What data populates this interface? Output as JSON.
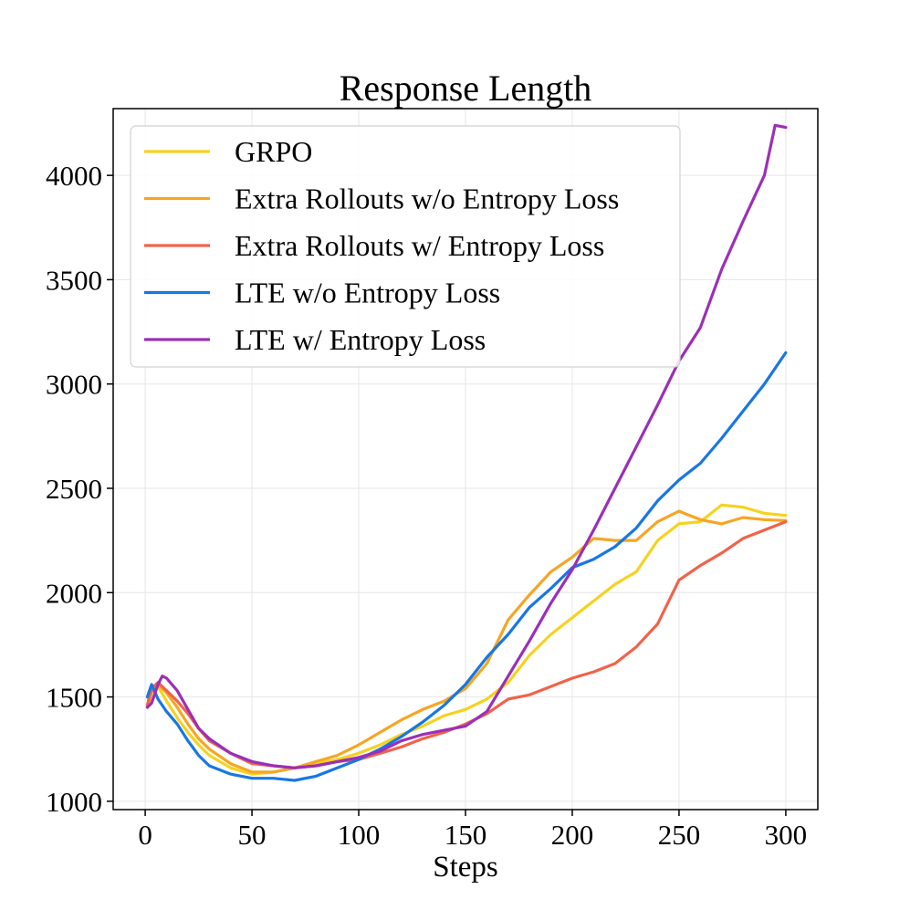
{
  "chart_data": {
    "type": "line",
    "title": "Response Length",
    "xlabel": "Steps",
    "ylabel": "",
    "xlim": [
      -15,
      315
    ],
    "ylim": [
      960,
      4320
    ],
    "xticks": [
      0,
      50,
      100,
      150,
      200,
      250,
      300
    ],
    "yticks": [
      1000,
      1500,
      2000,
      2500,
      3000,
      3500,
      4000
    ],
    "grid": true,
    "legend_position": "top-left",
    "series": [
      {
        "name": "GRPO",
        "color": "#f7d21e",
        "x": [
          1,
          3,
          6,
          10,
          15,
          20,
          25,
          30,
          40,
          50,
          60,
          70,
          80,
          90,
          100,
          110,
          120,
          130,
          140,
          150,
          160,
          170,
          180,
          190,
          200,
          210,
          220,
          230,
          240,
          250,
          260,
          270,
          280,
          290,
          300
        ],
        "y": [
          1460,
          1540,
          1550,
          1480,
          1400,
          1330,
          1270,
          1220,
          1160,
          1130,
          1140,
          1160,
          1180,
          1200,
          1230,
          1270,
          1320,
          1360,
          1410,
          1440,
          1490,
          1570,
          1700,
          1800,
          1880,
          1960,
          2040,
          2100,
          2250,
          2330,
          2340,
          2420,
          2410,
          2380,
          2370
        ]
      },
      {
        "name": "Extra Rollouts w/o Entropy Loss",
        "color": "#f5a623",
        "x": [
          1,
          3,
          6,
          10,
          15,
          20,
          25,
          30,
          40,
          50,
          60,
          70,
          80,
          90,
          100,
          110,
          120,
          130,
          140,
          150,
          160,
          170,
          180,
          190,
          200,
          210,
          220,
          230,
          240,
          250,
          260,
          270,
          280,
          290,
          300
        ],
        "y": [
          1450,
          1520,
          1560,
          1520,
          1450,
          1370,
          1300,
          1250,
          1180,
          1140,
          1140,
          1160,
          1190,
          1220,
          1270,
          1330,
          1390,
          1440,
          1480,
          1540,
          1660,
          1870,
          1990,
          2100,
          2170,
          2260,
          2250,
          2250,
          2340,
          2390,
          2350,
          2330,
          2360,
          2350,
          2345
        ]
      },
      {
        "name": "Extra Rollouts w/ Entropy Loss",
        "color": "#f0634a",
        "x": [
          1,
          3,
          6,
          10,
          15,
          20,
          25,
          30,
          40,
          50,
          60,
          70,
          80,
          90,
          100,
          110,
          120,
          130,
          140,
          150,
          160,
          170,
          180,
          190,
          200,
          210,
          220,
          230,
          240,
          250,
          260,
          270,
          280,
          290,
          300
        ],
        "y": [
          1460,
          1540,
          1570,
          1530,
          1480,
          1420,
          1350,
          1290,
          1230,
          1180,
          1170,
          1160,
          1170,
          1190,
          1200,
          1230,
          1260,
          1300,
          1330,
          1370,
          1420,
          1490,
          1510,
          1550,
          1590,
          1620,
          1660,
          1740,
          1850,
          2060,
          2130,
          2190,
          2260,
          2300,
          2340
        ]
      },
      {
        "name": "LTE w/o Entropy Loss",
        "color": "#1877e3",
        "x": [
          1,
          3,
          6,
          10,
          15,
          20,
          25,
          30,
          40,
          50,
          60,
          70,
          80,
          90,
          100,
          110,
          120,
          130,
          140,
          150,
          160,
          170,
          180,
          190,
          200,
          210,
          220,
          230,
          240,
          250,
          260,
          270,
          280,
          290,
          300
        ],
        "y": [
          1500,
          1560,
          1490,
          1430,
          1370,
          1290,
          1220,
          1170,
          1130,
          1110,
          1110,
          1100,
          1120,
          1160,
          1200,
          1250,
          1310,
          1380,
          1460,
          1560,
          1690,
          1800,
          1930,
          2020,
          2120,
          2160,
          2220,
          2310,
          2440,
          2540,
          2620,
          2740,
          2870,
          3000,
          3150
        ]
      },
      {
        "name": "LTE w/ Entropy Loss",
        "color": "#9b2fb7",
        "x": [
          1,
          3,
          6,
          8,
          10,
          15,
          20,
          25,
          30,
          40,
          50,
          60,
          70,
          80,
          90,
          100,
          110,
          120,
          130,
          140,
          150,
          160,
          170,
          180,
          190,
          200,
          210,
          220,
          230,
          240,
          250,
          260,
          270,
          280,
          290,
          295,
          300
        ],
        "y": [
          1450,
          1470,
          1560,
          1600,
          1590,
          1530,
          1440,
          1350,
          1300,
          1230,
          1190,
          1170,
          1160,
          1170,
          1190,
          1210,
          1240,
          1290,
          1320,
          1340,
          1360,
          1430,
          1600,
          1770,
          1950,
          2110,
          2300,
          2500,
          2700,
          2900,
          3110,
          3270,
          3550,
          3780,
          4000,
          4240,
          4230
        ]
      }
    ]
  }
}
